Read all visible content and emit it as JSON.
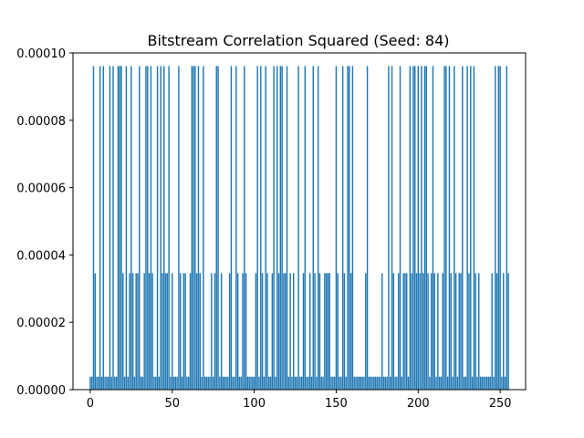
{
  "chart_data": {
    "type": "bar",
    "title": "Bitstream Correlation Squared (Seed: 84)",
    "xlabel": "",
    "ylabel": "",
    "xlim": [
      -10.5,
      265.5
    ],
    "ylim": [
      0,
      0.0001
    ],
    "x_ticks": [
      0,
      50,
      100,
      150,
      200,
      250
    ],
    "x_tick_labels": [
      "0",
      "50",
      "100",
      "150",
      "200",
      "250"
    ],
    "y_ticks": [
      0,
      2e-05,
      4e-05,
      6e-05,
      8e-05,
      0.0001
    ],
    "y_tick_labels": [
      "0.00000",
      "0.00002",
      "0.00004",
      "0.00006",
      "0.00008",
      "0.00010"
    ],
    "grid": false,
    "bar_color": "#1f77b4",
    "x_range": [
      0,
      255
    ],
    "values": [
      3.85e-06,
      3.85e-06,
      9.61e-05,
      3.459e-05,
      3.85e-06,
      3.85e-06,
      9.61e-05,
      3.85e-06,
      9.61e-05,
      3.85e-06,
      3.85e-06,
      3.85e-06,
      9.61e-05,
      3.85e-06,
      9.61e-05,
      3.85e-06,
      3.85e-06,
      9.61e-05,
      9.61e-05,
      9.61e-05,
      3.459e-05,
      3.85e-06,
      9.61e-05,
      3.85e-06,
      3.459e-05,
      9.61e-05,
      3.459e-05,
      3.85e-06,
      3.459e-05,
      3.459e-05,
      9.61e-05,
      3.85e-06,
      3.85e-06,
      3.459e-05,
      9.61e-05,
      9.61e-05,
      3.459e-05,
      9.61e-05,
      3.459e-05,
      3.85e-06,
      3.85e-06,
      9.61e-05,
      3.85e-06,
      9.61e-05,
      3.459e-05,
      9.61e-05,
      3.459e-05,
      3.459e-05,
      9.61e-05,
      3.85e-06,
      3.459e-05,
      3.85e-06,
      3.85e-06,
      3.85e-06,
      9.61e-05,
      3.459e-05,
      3.85e-06,
      3.459e-05,
      3.459e-05,
      3.85e-06,
      3.85e-06,
      3.459e-05,
      9.61e-05,
      9.61e-05,
      9.61e-05,
      3.459e-05,
      9.61e-05,
      3.459e-05,
      3.85e-06,
      9.61e-05,
      3.85e-06,
      3.85e-06,
      3.85e-06,
      3.85e-06,
      3.459e-05,
      3.85e-06,
      3.459e-05,
      9.61e-05,
      9.61e-05,
      3.85e-06,
      3.459e-05,
      3.85e-06,
      3.85e-06,
      3.85e-06,
      3.85e-06,
      3.459e-05,
      9.61e-05,
      3.85e-06,
      3.85e-06,
      9.61e-05,
      3.459e-05,
      3.85e-06,
      3.85e-06,
      3.459e-05,
      9.61e-05,
      3.459e-05,
      3.85e-06,
      3.85e-06,
      3.85e-06,
      3.85e-06,
      3.85e-06,
      3.459e-05,
      9.61e-05,
      3.85e-06,
      9.61e-05,
      3.459e-05,
      3.85e-06,
      9.61e-05,
      3.459e-05,
      3.85e-06,
      3.85e-06,
      3.459e-05,
      9.61e-05,
      3.85e-06,
      9.61e-05,
      3.459e-05,
      9.61e-05,
      9.61e-05,
      3.459e-05,
      3.459e-05,
      9.61e-05,
      3.85e-06,
      3.459e-05,
      3.85e-06,
      3.459e-05,
      3.85e-06,
      3.85e-06,
      9.61e-05,
      3.85e-06,
      3.85e-06,
      3.459e-05,
      9.61e-05,
      3.85e-06,
      3.85e-06,
      3.459e-05,
      3.85e-06,
      9.61e-05,
      3.459e-05,
      3.85e-06,
      9.61e-05,
      3.459e-05,
      3.85e-06,
      3.85e-06,
      3.459e-05,
      3.459e-05,
      3.459e-05,
      3.459e-05,
      3.85e-06,
      3.85e-06,
      3.85e-06,
      9.61e-05,
      3.459e-05,
      3.85e-06,
      3.85e-06,
      9.61e-05,
      3.459e-05,
      3.85e-06,
      9.61e-05,
      9.61e-05,
      3.459e-05,
      9.61e-05,
      3.85e-06,
      3.85e-06,
      3.85e-06,
      3.85e-06,
      3.85e-06,
      3.85e-06,
      3.85e-06,
      3.459e-05,
      9.61e-05,
      3.85e-06,
      3.85e-06,
      3.85e-06,
      3.85e-06,
      3.85e-06,
      3.85e-06,
      3.85e-06,
      3.85e-06,
      3.459e-05,
      3.85e-06,
      3.85e-06,
      3.85e-06,
      9.61e-05,
      3.85e-06,
      9.61e-05,
      3.459e-05,
      3.85e-06,
      3.85e-06,
      3.459e-05,
      9.61e-05,
      3.85e-06,
      3.459e-05,
      3.459e-05,
      3.459e-05,
      3.85e-06,
      9.61e-05,
      3.459e-05,
      9.61e-05,
      9.61e-05,
      3.459e-05,
      9.61e-05,
      3.459e-05,
      9.61e-05,
      3.459e-05,
      9.61e-05,
      9.61e-05,
      3.459e-05,
      3.85e-06,
      3.459e-05,
      9.61e-05,
      3.459e-05,
      3.85e-06,
      3.459e-05,
      3.85e-06,
      3.85e-06,
      3.459e-05,
      9.61e-05,
      9.61e-05,
      3.85e-06,
      9.61e-05,
      3.459e-05,
      3.85e-06,
      9.61e-05,
      3.459e-05,
      3.85e-06,
      3.459e-05,
      3.459e-05,
      9.61e-05,
      3.85e-06,
      3.85e-06,
      9.61e-05,
      3.459e-05,
      9.61e-05,
      3.85e-06,
      9.61e-05,
      3.459e-05,
      3.85e-06,
      3.459e-05,
      3.85e-06,
      3.85e-06,
      3.85e-06,
      3.85e-06,
      3.85e-06,
      3.85e-06,
      3.85e-06,
      3.459e-05,
      3.85e-06,
      9.61e-05,
      3.459e-05,
      9.61e-05,
      9.61e-05,
      3.85e-06,
      3.459e-05,
      3.85e-06,
      9.61e-05,
      3.459e-05
    ]
  }
}
